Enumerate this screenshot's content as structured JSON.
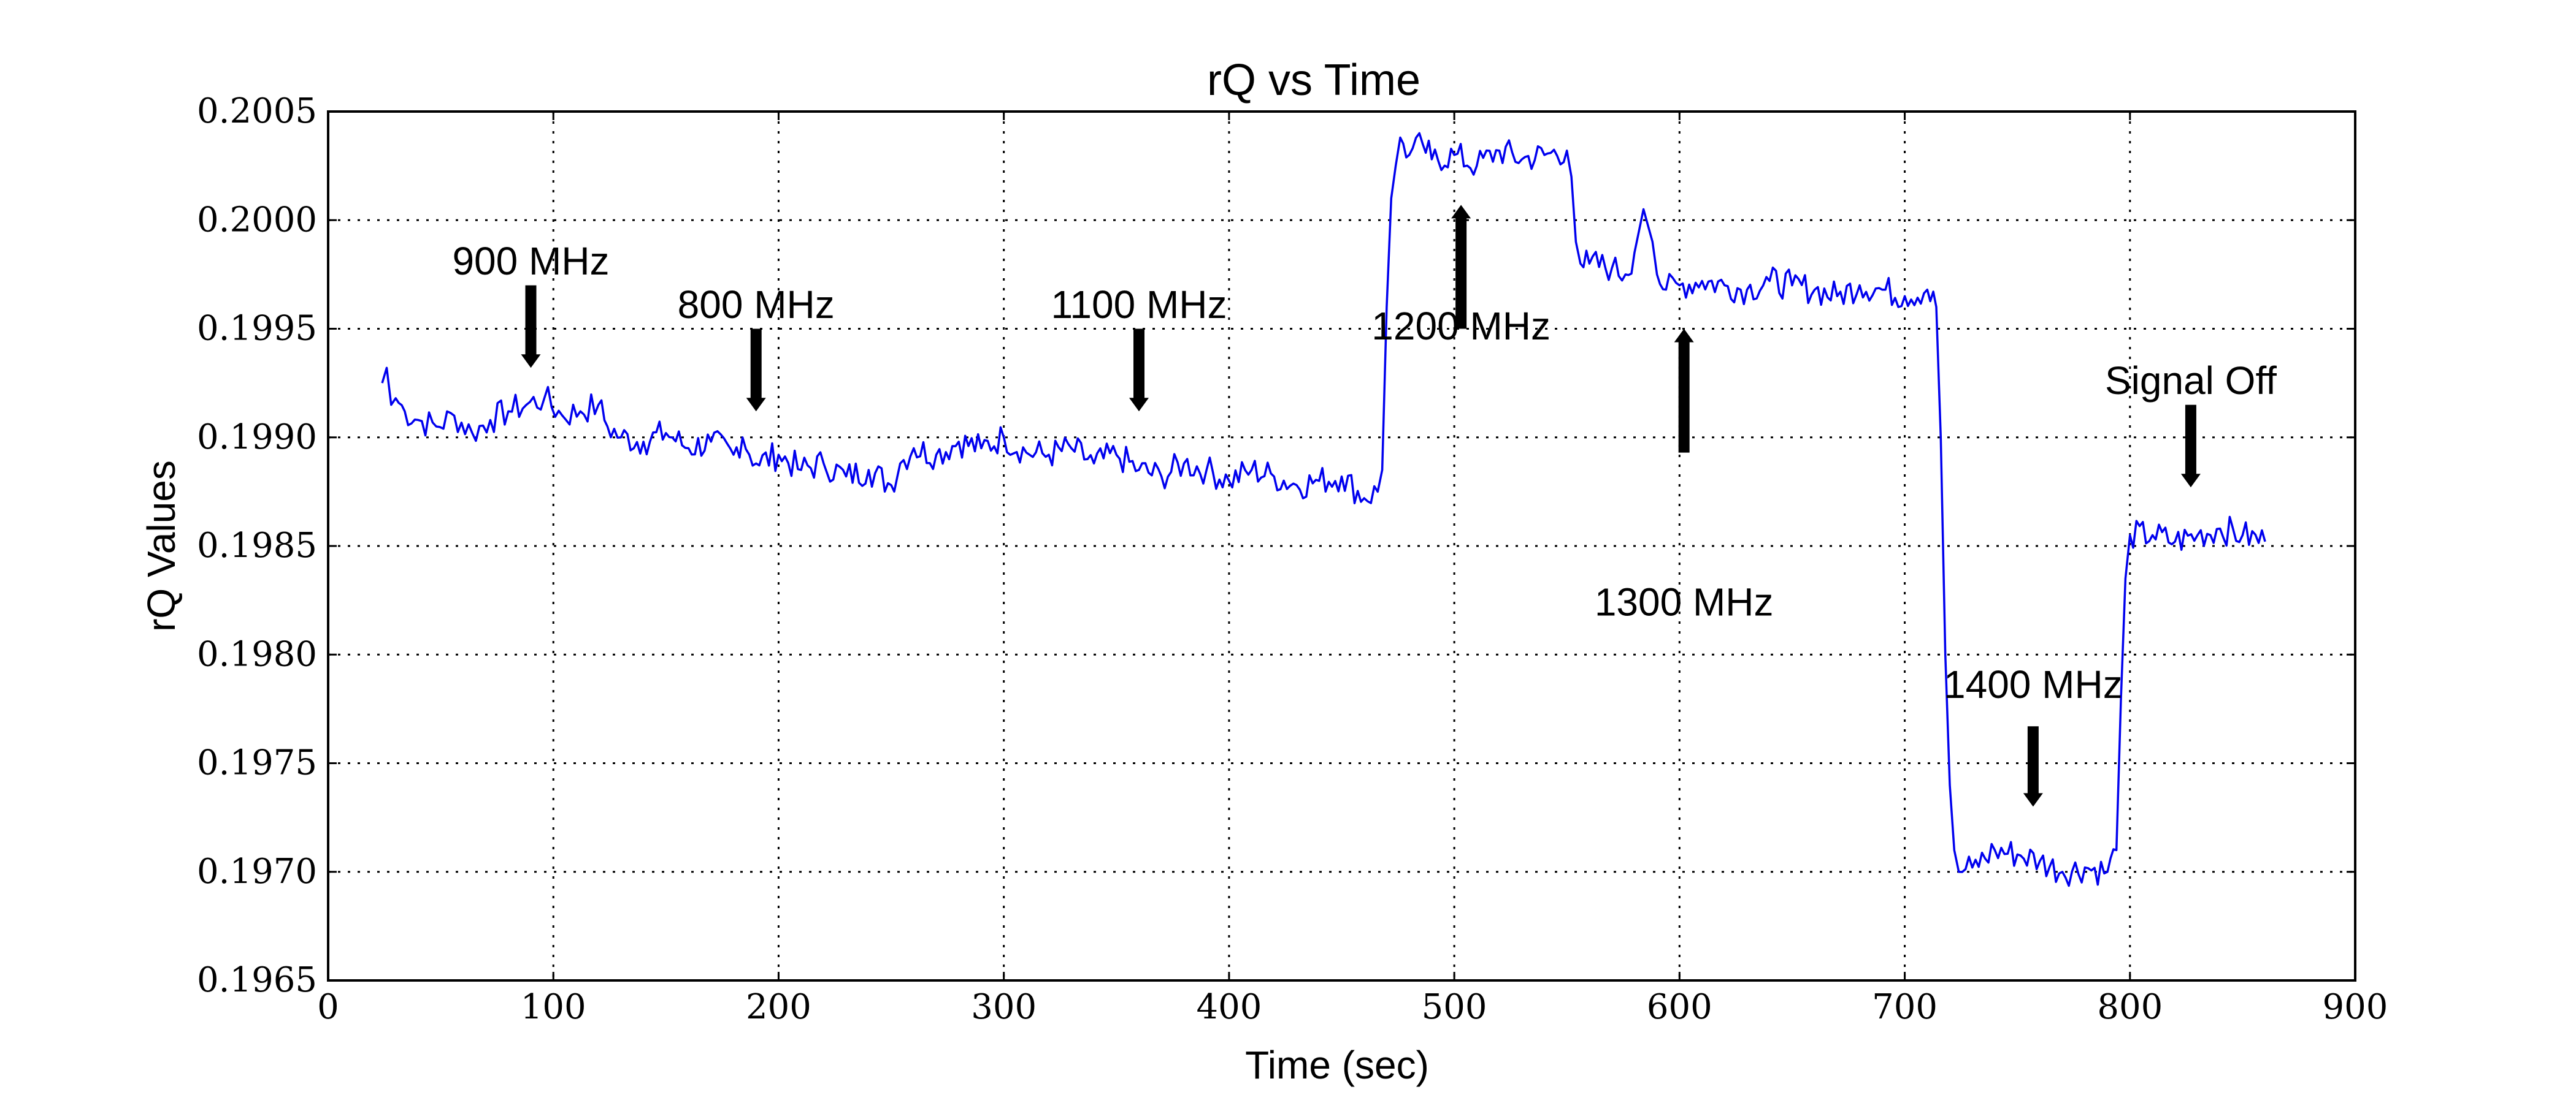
{
  "chart_data": {
    "type": "line",
    "title": "rQ vs Time",
    "xlabel": "Time (sec)",
    "ylabel": "rQ Values",
    "xlim": [
      0,
      900
    ],
    "ylim": [
      0.1965,
      0.2005
    ],
    "xticks": [
      0,
      100,
      200,
      300,
      400,
      500,
      600,
      700,
      800,
      900
    ],
    "yticks": [
      0.1965,
      0.197,
      0.1975,
      0.198,
      0.1985,
      0.199,
      0.1995,
      0.2,
      0.2005
    ],
    "xtick_labels": [
      "0",
      "100",
      "200",
      "300",
      "400",
      "500",
      "600",
      "700",
      "800",
      "900"
    ],
    "ytick_labels": [
      "0.1965",
      "0.1970",
      "0.1975",
      "0.1980",
      "0.1985",
      "0.1990",
      "0.1995",
      "0.2000",
      "0.2005"
    ],
    "grid": true,
    "series_color": "#0000ee",
    "series": [
      {
        "x": [
          24,
          26,
          28,
          30,
          34,
          40,
          48,
          56,
          64,
          72,
          80,
          88,
          96,
          104,
          112,
          120,
          124,
          130,
          140,
          150,
          160,
          170,
          180,
          184,
          190,
          200,
          210,
          220,
          230,
          240,
          250,
          254,
          260,
          270,
          280,
          290,
          300,
          310,
          320,
          330,
          340,
          350,
          360,
          370,
          380,
          390,
          400,
          410,
          420,
          430,
          440,
          450,
          460,
          466,
          468,
          470,
          472,
          474,
          476,
          480,
          486,
          490,
          500,
          510,
          520,
          530,
          540,
          550,
          552,
          554,
          556,
          560,
          570,
          576,
          580,
          584,
          588,
          590,
          594,
          600,
          610,
          620,
          630,
          640,
          650,
          660,
          670,
          680,
          690,
          700,
          710,
          714,
          716,
          718,
          720,
          722,
          724,
          730,
          740,
          750,
          760,
          770,
          780,
          790,
          794,
          796,
          798,
          800,
          810,
          820,
          830,
          840,
          850,
          860
        ],
        "y": [
          0.19925,
          0.19932,
          0.19915,
          0.19918,
          0.19912,
          0.19908,
          0.19905,
          0.1991,
          0.19902,
          0.19908,
          0.19912,
          0.19915,
          0.19918,
          0.1991,
          0.19912,
          0.19915,
          0.19905,
          0.199,
          0.19898,
          0.19902,
          0.19895,
          0.19898,
          0.19892,
          0.199,
          0.19888,
          0.19892,
          0.19885,
          0.19888,
          0.19882,
          0.19885,
          0.19878,
          0.19888,
          0.19895,
          0.19892,
          0.19898,
          0.19895,
          0.199,
          0.19893,
          0.19892,
          0.19895,
          0.19888,
          0.19892,
          0.19885,
          0.19882,
          0.19888,
          0.19885,
          0.1988,
          0.19885,
          0.19882,
          0.19878,
          0.1988,
          0.19882,
          0.19872,
          0.19875,
          0.19885,
          0.1996,
          0.2001,
          0.20025,
          0.20038,
          0.2003,
          0.20035,
          0.20028,
          0.2003,
          0.20025,
          0.20032,
          0.20028,
          0.2003,
          0.20032,
          0.2002,
          0.1999,
          0.1998,
          0.1998,
          0.19978,
          0.19975,
          0.19985,
          0.20005,
          0.1999,
          0.19975,
          0.19968,
          0.1997,
          0.19972,
          0.1997,
          0.19968,
          0.19972,
          0.1997,
          0.19968,
          0.19965,
          0.1997,
          0.19968,
          0.19965,
          0.19968,
          0.1996,
          0.199,
          0.198,
          0.1974,
          0.1971,
          0.197,
          0.19702,
          0.1971,
          0.19708,
          0.19705,
          0.197,
          0.19702,
          0.197,
          0.1971,
          0.1978,
          0.19835,
          0.19855,
          0.19855,
          0.19852,
          0.19855,
          0.19858,
          0.19855,
          0.19852
        ]
      }
    ],
    "annotations": [
      {
        "label": "900 MHz",
        "x": 90,
        "direction": "down",
        "label_y": 0.19975,
        "arrow_from_y": 0.1997,
        "arrow_to_y": 0.19932
      },
      {
        "label": "800 MHz",
        "x": 190,
        "direction": "down",
        "label_y": 0.19955,
        "arrow_from_y": 0.1995,
        "arrow_to_y": 0.19912
      },
      {
        "label": "1100 MHz",
        "x": 360,
        "direction": "down",
        "label_y": 0.19955,
        "arrow_from_y": 0.1995,
        "arrow_to_y": 0.19912
      },
      {
        "label": "1200 MHz",
        "x": 503,
        "direction": "up",
        "label_y": 0.19945,
        "arrow_from_y": 0.1995,
        "arrow_to_y": 0.20007
      },
      {
        "label": "1300 MHz",
        "x": 602,
        "direction": "up",
        "label_y": 0.19818,
        "arrow_from_y": 0.19893,
        "arrow_to_y": 0.1995
      },
      {
        "label": "1400 MHz",
        "x": 757,
        "direction": "down",
        "label_y": 0.1978,
        "arrow_from_y": 0.19767,
        "arrow_to_y": 0.1973
      },
      {
        "label": "Signal Off",
        "x": 827,
        "direction": "down",
        "label_y": 0.1992,
        "arrow_from_y": 0.19915,
        "arrow_to_y": 0.19877
      }
    ]
  }
}
